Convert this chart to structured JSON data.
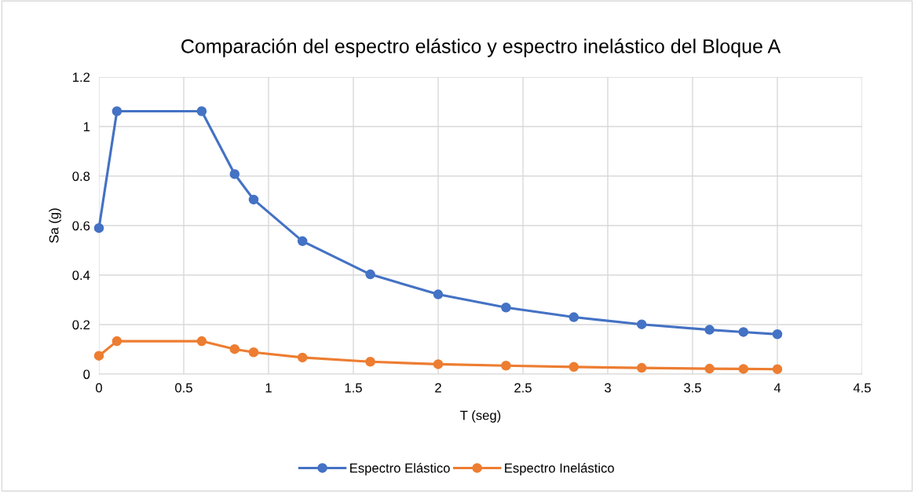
{
  "chart_data": {
    "type": "line",
    "title": "Comparación del espectro elástico y espectro inelástico del Bloque A",
    "xlabel": "T (seg)",
    "ylabel": "Sa (g)",
    "x": [
      0,
      0.106,
      0.606,
      0.8,
      0.912,
      1.2,
      1.6,
      2,
      2.4,
      2.8,
      3.2,
      3.6,
      3.8,
      4
    ],
    "series": [
      {
        "name": "Espectro Elástico",
        "color": "#4472c4",
        "values": [
          0.59,
          1.062,
          1.062,
          0.808,
          0.705,
          0.537,
          0.403,
          0.322,
          0.269,
          0.23,
          0.201,
          0.179,
          0.17,
          0.161
        ]
      },
      {
        "name": "Espectro Inelástico",
        "color": "#ed7d31",
        "values": [
          0.074,
          0.133,
          0.133,
          0.101,
          0.088,
          0.067,
          0.05,
          0.04,
          0.034,
          0.029,
          0.025,
          0.022,
          0.021,
          0.02
        ]
      }
    ],
    "xlim": [
      0,
      4.5
    ],
    "xticks": [
      0,
      0.5,
      1,
      1.5,
      2,
      2.5,
      3,
      3.5,
      4,
      4.5
    ],
    "ylim": [
      0,
      1.2
    ],
    "yticks": [
      0,
      0.2,
      0.4,
      0.6,
      0.8,
      1,
      1.2
    ],
    "grid": true,
    "legend": "bottom",
    "marker": "circle",
    "line_style": "solid"
  }
}
